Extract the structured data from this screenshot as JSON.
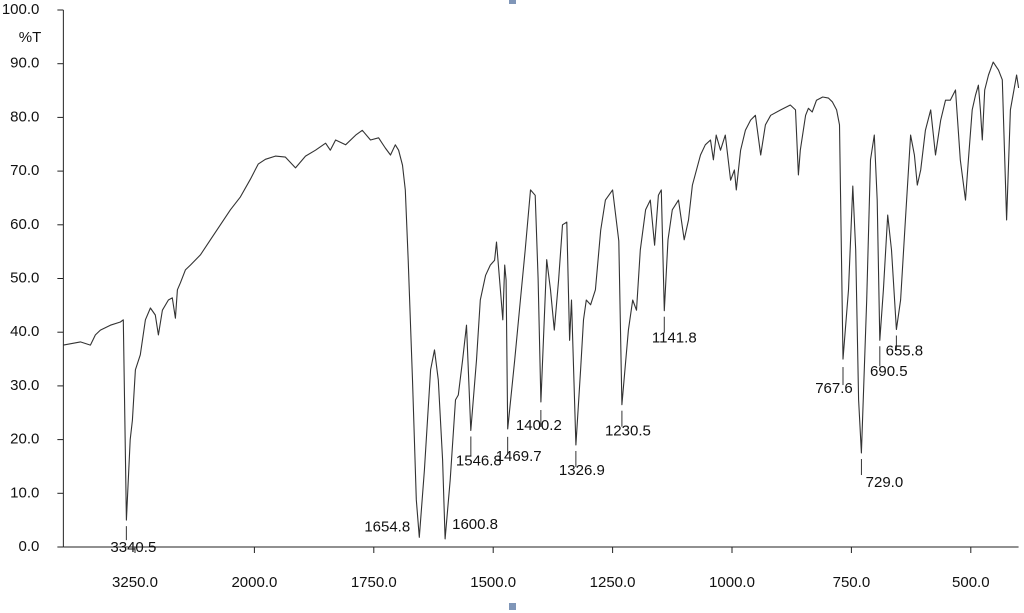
{
  "chart_data": {
    "type": "line",
    "ylabel": "%T",
    "xlim": [
      4000,
      400
    ],
    "ylim": [
      0,
      100
    ],
    "xticks": [
      {
        "value": 3250,
        "label": "3250.0"
      },
      {
        "value": 2000,
        "label": "2000.0"
      },
      {
        "value": 1750,
        "label": "1750.0"
      },
      {
        "value": 1500,
        "label": "1500.0"
      },
      {
        "value": 1250,
        "label": "1250.0"
      },
      {
        "value": 1000,
        "label": "1000.0"
      },
      {
        "value": 750,
        "label": "750.0"
      },
      {
        "value": 500,
        "label": "500.0"
      }
    ],
    "yticks": [
      {
        "value": 0,
        "label": "0.0"
      },
      {
        "value": 10,
        "label": "10.0"
      },
      {
        "value": 20,
        "label": "20.0"
      },
      {
        "value": 30,
        "label": "30.0"
      },
      {
        "value": 40,
        "label": "40.0"
      },
      {
        "value": 50,
        "label": "50.0"
      },
      {
        "value": 60,
        "label": "60.0"
      },
      {
        "value": 70,
        "label": "70.0"
      },
      {
        "value": 80,
        "label": "80.0"
      },
      {
        "value": 90,
        "label": "90.0"
      },
      {
        "value": 100,
        "label": "100.0"
      }
    ],
    "x": [
      4000,
      3822,
      3717,
      3665,
      3612,
      3508,
      3403,
      3372,
      3340.5,
      3300,
      3277,
      3246,
      3194,
      3141,
      3089,
      3037,
      3005,
      2963,
      2900,
      2859,
      2827,
      2806,
      2775,
      2722,
      2670,
      2565,
      2461,
      2356,
      2251,
      2147,
      2042,
      1992,
      1977,
      1956,
      1935,
      1914,
      1893,
      1872,
      1851,
      1841,
      1830,
      1809,
      1788,
      1774,
      1757,
      1740,
      1726,
      1715,
      1705,
      1698,
      1690,
      1684,
      1678,
      1669,
      1661,
      1654.8,
      1644,
      1631,
      1623,
      1615,
      1606,
      1600.8,
      1590,
      1579,
      1573,
      1564,
      1556,
      1546.8,
      1535,
      1527,
      1516,
      1506,
      1497,
      1493,
      1485,
      1480,
      1476,
      1473,
      1469.7,
      1455,
      1443,
      1433,
      1422,
      1412,
      1406,
      1400.2,
      1388,
      1380,
      1372,
      1363,
      1355,
      1346,
      1340,
      1336,
      1326.9,
      1317,
      1311,
      1305,
      1296,
      1286,
      1275,
      1265,
      1250,
      1237,
      1230.5,
      1217,
      1208,
      1200,
      1192,
      1181,
      1171,
      1162,
      1154,
      1148,
      1141.8,
      1134,
      1125,
      1112,
      1100,
      1091,
      1083,
      1066,
      1056,
      1045,
      1039,
      1033,
      1024,
      1014,
      1003,
      995,
      991,
      982,
      972,
      961,
      951,
      940,
      930,
      919,
      898,
      878,
      867,
      861,
      857,
      846,
      840,
      832,
      823,
      810,
      798,
      790,
      781,
      775,
      767.6,
      756,
      747,
      741,
      735,
      729,
      718,
      710,
      702,
      696,
      690.5,
      683,
      674,
      666,
      655.8,
      647,
      637,
      626,
      618,
      612,
      605,
      595,
      584,
      574,
      563,
      553,
      543,
      532,
      522,
      511,
      505,
      497,
      490,
      484,
      480,
      476,
      471,
      463,
      453,
      442,
      434,
      425,
      417,
      404,
      400
    ],
    "series": [
      {
        "color": "#333333",
        "values": [
          37.6,
          38.2,
          37.6,
          39.5,
          40.4,
          41.3,
          41.9,
          42.3,
          5.0,
          20.0,
          23.6,
          33.0,
          35.8,
          42.3,
          44.5,
          43.2,
          39.5,
          44.1,
          46.0,
          46.4,
          42.6,
          47.9,
          49.2,
          51.6,
          52.5,
          54.4,
          57.2,
          60.0,
          62.8,
          65.2,
          68.5,
          71.3,
          72.2,
          72.8,
          72.6,
          70.6,
          72.8,
          73.9,
          75.2,
          73.9,
          75.8,
          74.9,
          76.7,
          77.6,
          75.8,
          76.2,
          74.3,
          73.0,
          74.9,
          73.9,
          71.1,
          66.5,
          53.4,
          31.1,
          8.8,
          1.8,
          14.3,
          33.0,
          36.7,
          31.1,
          16.2,
          1.5,
          12.5,
          27.4,
          28.3,
          34.8,
          41.3,
          21.7,
          34.8,
          46.0,
          50.6,
          52.5,
          53.4,
          56.8,
          47.9,
          42.3,
          52.5,
          49.7,
          22.0,
          34.8,
          46.0,
          55.3,
          66.5,
          65.5,
          50.0,
          27.0,
          53.5,
          47.9,
          40.4,
          49.7,
          60.0,
          60.5,
          38.5,
          46.0,
          19.0,
          33.0,
          42.3,
          46.0,
          45.1,
          47.9,
          59.0,
          64.6,
          66.5,
          57.0,
          26.5,
          40.4,
          46.0,
          44.1,
          55.3,
          62.8,
          64.6,
          56.2,
          65.5,
          66.5,
          44.0,
          57.2,
          62.8,
          64.6,
          57.2,
          60.9,
          67.4,
          73.0,
          74.9,
          75.8,
          72.1,
          76.7,
          73.9,
          76.7,
          68.3,
          70.2,
          66.5,
          73.9,
          77.6,
          79.5,
          80.4,
          73.0,
          78.6,
          80.4,
          81.4,
          82.3,
          81.4,
          69.3,
          73.9,
          80.4,
          81.7,
          81.0,
          83.2,
          83.8,
          83.6,
          82.9,
          81.4,
          78.6,
          35.0,
          47.9,
          67.2,
          55.3,
          27.4,
          17.5,
          46.0,
          72.1,
          76.7,
          64.6,
          38.5,
          47.9,
          61.8,
          55.3,
          40.5,
          46.0,
          60.9,
          76.7,
          73.0,
          67.4,
          70.2,
          77.6,
          81.4,
          73.0,
          79.5,
          83.2,
          83.2,
          85.1,
          72.1,
          64.6,
          72.1,
          81.4,
          84.2,
          86.0,
          81.4,
          75.8,
          85.1,
          87.9,
          90.3,
          88.8,
          87.0,
          60.9,
          81.4,
          87.9,
          85.5
        ]
      }
    ],
    "peaks": [
      {
        "x": 3340.5,
        "y": 5.0,
        "label": "3340.5"
      },
      {
        "x": 1654.8,
        "y": 1.8,
        "label": "1654.8"
      },
      {
        "x": 1600.8,
        "y": 1.5,
        "label": "1600.8"
      },
      {
        "x": 1546.8,
        "y": 21.7,
        "label": "1546.8"
      },
      {
        "x": 1469.7,
        "y": 22.0,
        "label": "1469.7"
      },
      {
        "x": 1400.2,
        "y": 27.0,
        "label": "1400.2"
      },
      {
        "x": 1326.9,
        "y": 19.0,
        "label": "1326.9"
      },
      {
        "x": 1230.5,
        "y": 26.5,
        "label": "1230.5"
      },
      {
        "x": 1141.8,
        "y": 44.0,
        "label": "1141.8"
      },
      {
        "x": 767.6,
        "y": 35.0,
        "label": "767.6"
      },
      {
        "x": 729,
        "y": 17.5,
        "label": "729.0"
      },
      {
        "x": 690.5,
        "y": 38.5,
        "label": "690.5"
      },
      {
        "x": 655.8,
        "y": 40.5,
        "label": "655.8"
      }
    ]
  }
}
